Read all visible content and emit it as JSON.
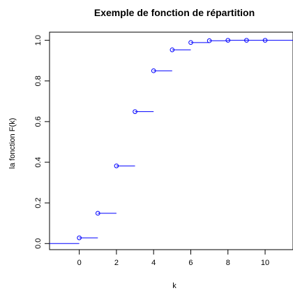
{
  "chart_data": {
    "type": "step",
    "title": "Exemple de fonction de répartition",
    "xlabel": "k",
    "ylabel": "la fonction F(k)",
    "xlim": [
      -1.6,
      11.5
    ],
    "ylim": [
      -0.03,
      1.04
    ],
    "x_ticks": [
      0,
      2,
      4,
      6,
      8,
      10
    ],
    "y_ticks": [
      0.0,
      0.2,
      0.4,
      0.6,
      0.8,
      1.0
    ],
    "x_tick_labels": [
      "0",
      "2",
      "4",
      "6",
      "8",
      "10"
    ],
    "y_tick_labels": [
      "0.0",
      "0.2",
      "0.4",
      "0.6",
      "0.8",
      "1.0"
    ],
    "x": [
      -1,
      0,
      1,
      2,
      3,
      4,
      5,
      6,
      7,
      8,
      9,
      10
    ],
    "y": [
      0.0,
      0.028,
      0.149,
      0.382,
      0.649,
      0.85,
      0.953,
      0.989,
      0.998,
      1.0,
      1.0,
      1.0
    ],
    "open_circle_points": [
      0,
      1,
      2,
      3,
      4,
      5,
      6,
      7,
      8,
      9,
      10
    ],
    "step_color": "#0000ff",
    "grid": false,
    "legend": "none"
  }
}
